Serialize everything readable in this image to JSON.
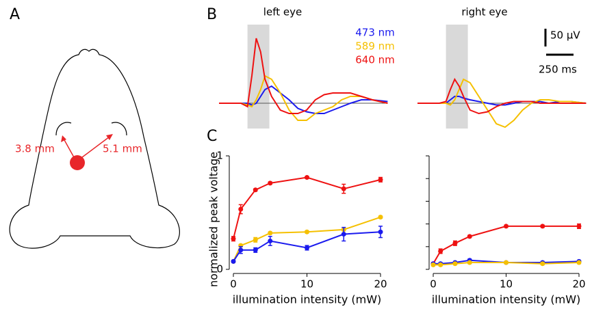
{
  "panels": {
    "a": "A",
    "b": "B",
    "c": "C"
  },
  "diagram": {
    "left_distance": "3.8 mm",
    "right_distance": "5.1 mm"
  },
  "scale_bars": {
    "voltage": "50 µV",
    "time": "250 ms"
  },
  "chart_data": [
    {
      "type": "trace",
      "title": "left eye",
      "stimulus": [
        260,
        460
      ],
      "x": [
        0,
        200,
        260,
        300,
        340,
        380,
        420,
        480,
        560,
        640,
        720,
        800,
        880,
        960,
        1040,
        1120,
        1200,
        1300,
        1400,
        1540
      ],
      "series": [
        {
          "name": "473 nm",
          "color": "#1a1aee",
          "values": [
            0,
            0,
            0,
            -5,
            0,
            20,
            40,
            50,
            30,
            10,
            -15,
            -25,
            -30,
            -30,
            -20,
            -10,
            0,
            10,
            10,
            5
          ]
        },
        {
          "name": "589 nm",
          "color": "#f5c000",
          "values": [
            0,
            0,
            -5,
            -10,
            10,
            40,
            80,
            70,
            30,
            -20,
            -50,
            -50,
            -30,
            -20,
            -10,
            10,
            20,
            20,
            10,
            0
          ]
        },
        {
          "name": "640 nm",
          "color": "#ee1111",
          "values": [
            0,
            0,
            -10,
            80,
            190,
            150,
            70,
            20,
            -20,
            -30,
            -30,
            -20,
            10,
            25,
            30,
            30,
            30,
            20,
            10,
            0
          ]
        }
      ]
    },
    {
      "type": "trace",
      "title": "right eye",
      "stimulus": [
        260,
        460
      ],
      "x": [
        0,
        200,
        260,
        300,
        340,
        380,
        420,
        480,
        560,
        640,
        720,
        800,
        880,
        960,
        1040,
        1120,
        1200,
        1300,
        1400,
        1540
      ],
      "series": [
        {
          "color": "#1a1aee",
          "values": [
            0,
            0,
            0,
            10,
            20,
            20,
            15,
            10,
            5,
            0,
            -5,
            -5,
            0,
            5,
            5,
            5,
            0,
            5,
            5,
            0
          ]
        },
        {
          "color": "#f5c000",
          "values": [
            0,
            0,
            0,
            -5,
            10,
            40,
            70,
            60,
            20,
            -20,
            -60,
            -70,
            -50,
            -20,
            0,
            10,
            10,
            5,
            5,
            0
          ]
        },
        {
          "color": "#ee1111",
          "values": [
            0,
            0,
            5,
            40,
            70,
            50,
            20,
            -20,
            -30,
            -25,
            -10,
            0,
            5,
            5,
            5,
            0,
            0,
            0,
            0,
            0
          ]
        }
      ]
    },
    {
      "type": "line",
      "ylabel": "normalized peak voltage",
      "xlabel": "illumination intensity (mW)",
      "xlim": [
        0,
        20
      ],
      "xticks": [
        0,
        10,
        20
      ],
      "ylim": [
        0,
        1
      ],
      "yticks": [
        0,
        1
      ],
      "ytick_labels": true,
      "x": [
        0,
        1,
        3,
        5,
        10,
        15,
        20
      ],
      "series": [
        {
          "color": "#ee1111",
          "values": [
            0.27,
            0.53,
            0.7,
            0.76,
            0.81,
            0.71,
            0.79
          ],
          "errors": [
            0.02,
            0.04,
            0.01,
            0.01,
            0.01,
            0.04,
            0.02
          ]
        },
        {
          "color": "#f5c000",
          "values": [
            0.07,
            0.21,
            0.26,
            0.32,
            0.33,
            0.35,
            0.46
          ],
          "errors": [
            0.01,
            0.01,
            0.02,
            0.01,
            0.01,
            0.01,
            0.01
          ]
        },
        {
          "color": "#1a1aee",
          "values": [
            0.07,
            0.17,
            0.17,
            0.25,
            0.19,
            0.31,
            0.33
          ],
          "errors": [
            0.01,
            0.03,
            0.02,
            0.04,
            0.02,
            0.06,
            0.05
          ]
        }
      ]
    },
    {
      "type": "line",
      "xlabel": "illumination intensity (mW)",
      "xlim": [
        0,
        20
      ],
      "xticks": [
        0,
        10,
        20
      ],
      "ylim": [
        0,
        1
      ],
      "yticks": [
        0,
        0.2,
        0.4,
        0.6,
        0.8,
        1
      ],
      "ytick_labels": false,
      "x": [
        0,
        1,
        3,
        5,
        10,
        15,
        20
      ],
      "series": [
        {
          "color": "#ee1111",
          "values": [
            0.05,
            0.16,
            0.23,
            0.29,
            0.38,
            0.38,
            0.38
          ],
          "errors": [
            0.01,
            0.02,
            0.02,
            0.01,
            0.01,
            0.01,
            0.02
          ]
        },
        {
          "color": "#1a1aee",
          "values": [
            0.05,
            0.05,
            0.06,
            0.08,
            0.06,
            0.06,
            0.07
          ],
          "errors": [
            0.01,
            0.01,
            0.01,
            0.01,
            0.01,
            0.01,
            0.01
          ]
        },
        {
          "color": "#f5c000",
          "values": [
            0.04,
            0.04,
            0.05,
            0.06,
            0.06,
            0.05,
            0.06
          ],
          "errors": [
            0.01,
            0.01,
            0.01,
            0.01,
            0.01,
            0.01,
            0.01
          ]
        }
      ]
    }
  ]
}
